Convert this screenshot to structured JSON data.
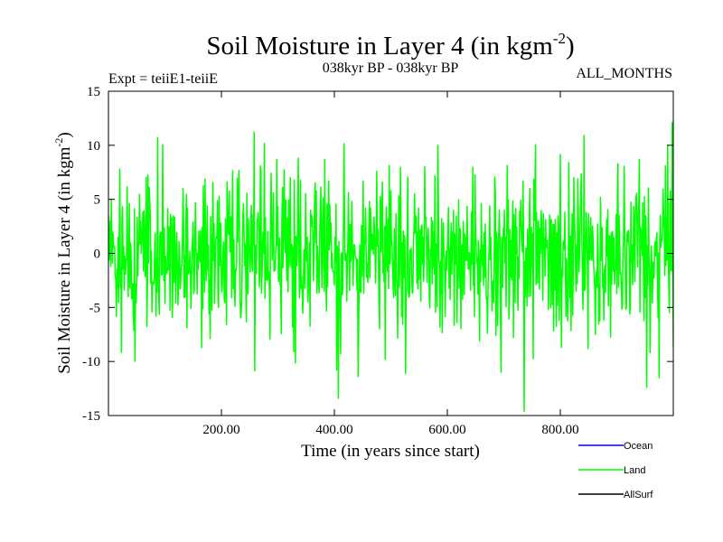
{
  "chart_data": {
    "type": "line",
    "title": {
      "main": "Soil Moisture in Layer 4 (in kgm",
      "sup": "-2",
      "close": ")"
    },
    "subtitle_left": "Expt = teiiE1-teiiE",
    "subtitle_center": "038kyr BP - 038kyr BP",
    "subtitle_right": "ALL_MONTHS",
    "xlabel": "Time (in years since start)",
    "ylabel": {
      "main": "Soil Moisture in Layer 4 (in kgm",
      "sup": "-2",
      "close": ")"
    },
    "xlim": [
      0,
      1000
    ],
    "ylim": [
      -15,
      15
    ],
    "xticks": [
      {
        "value": 200,
        "label": "200.00"
      },
      {
        "value": 400,
        "label": "400.00"
      },
      {
        "value": 600,
        "label": "600.00"
      },
      {
        "value": 800,
        "label": "800.00"
      }
    ],
    "yticks": [
      {
        "value": 15,
        "label": "15"
      },
      {
        "value": 10,
        "label": "10"
      },
      {
        "value": 5,
        "label": "5"
      },
      {
        "value": 0,
        "label": "0"
      },
      {
        "value": -5,
        "label": "-5"
      },
      {
        "value": -10,
        "label": "-10"
      },
      {
        "value": -15,
        "label": "-15"
      }
    ],
    "grid": false,
    "legend_position": "bottom-right",
    "series": [
      {
        "name": "Ocean",
        "color": "#0000ff",
        "values": []
      },
      {
        "name": "Land",
        "color": "#00ff00",
        "sample_interval_years": 1,
        "notable_points": [
          {
            "x": 20,
            "y": 7.8
          },
          {
            "x": 47,
            "y": -10.0
          },
          {
            "x": 87,
            "y": 10.7
          },
          {
            "x": 258,
            "y": 11.2
          },
          {
            "x": 407,
            "y": -13.4
          },
          {
            "x": 442,
            "y": -11.4
          },
          {
            "x": 583,
            "y": 10.0
          },
          {
            "x": 695,
            "y": -11.0
          },
          {
            "x": 736,
            "y": -14.6
          },
          {
            "x": 953,
            "y": -12.4
          },
          {
            "x": 975,
            "y": -11.5
          },
          {
            "x": 990,
            "y": 10.0
          },
          {
            "x": 998,
            "y": 12.1
          }
        ],
        "amplitude_std": 3.7
      },
      {
        "name": "AllSurf",
        "color": "#000000",
        "values": []
      }
    ]
  }
}
